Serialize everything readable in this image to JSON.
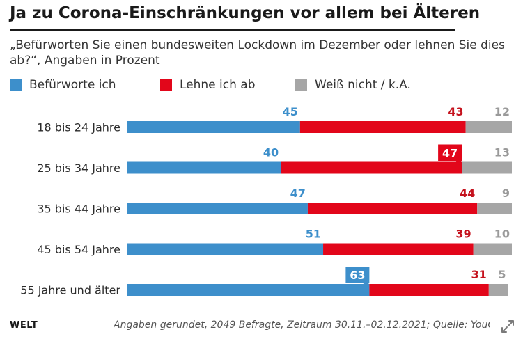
{
  "title": "Ja zu Corona-Einschränkungen vor allem bei Älteren",
  "subtitle": "„Befürworten Sie einen bundesweiten Lockdown im Dezember oder lehnen Sie dies ab?“, Angaben in Prozent",
  "legend": [
    {
      "label": "Befürworte ich",
      "color": "#3d8fcb"
    },
    {
      "label": "Lehne ich ab",
      "color": "#e2061a"
    },
    {
      "label": "Weiß nicht / k.A.",
      "color": "#a6a6a6"
    }
  ],
  "colors": {
    "approve": "#3d8fcb",
    "reject": "#e2061a",
    "unknown": "#a6a6a6",
    "approve_text": "#3d8fcb",
    "reject_text": "#c5121d",
    "unknown_text": "#9a9a9a"
  },
  "chart_data": {
    "type": "bar",
    "orientation": "horizontal",
    "stacked": true,
    "categories": [
      "18 bis 24 Jahre",
      "25 bis 34 Jahre",
      "35 bis 44 Jahre",
      "45 bis 54 Jahre",
      "55 Jahre und älter"
    ],
    "series": [
      {
        "name": "Befürworte ich",
        "values": [
          45,
          40,
          47,
          51,
          63
        ]
      },
      {
        "name": "Lehne ich ab",
        "values": [
          43,
          47,
          44,
          39,
          31
        ]
      },
      {
        "name": "Weiß nicht / k.A.",
        "values": [
          12,
          13,
          9,
          10,
          5
        ]
      }
    ],
    "highlighted": [
      {
        "category": "25 bis 34 Jahre",
        "series": "Lehne ich ab"
      },
      {
        "category": "55 Jahre und älter",
        "series": "Befürworte ich"
      }
    ],
    "xlim": [
      0,
      100
    ],
    "title": "Ja zu Corona-Einschränkungen vor allem bei Älteren",
    "xlabel": "",
    "ylabel": ""
  },
  "footer": {
    "brand": "WELT",
    "note": "Angaben gerundet, 2049 Befragte, Zeitraum 30.11.–02.12.2021; Quelle: YouGov"
  }
}
